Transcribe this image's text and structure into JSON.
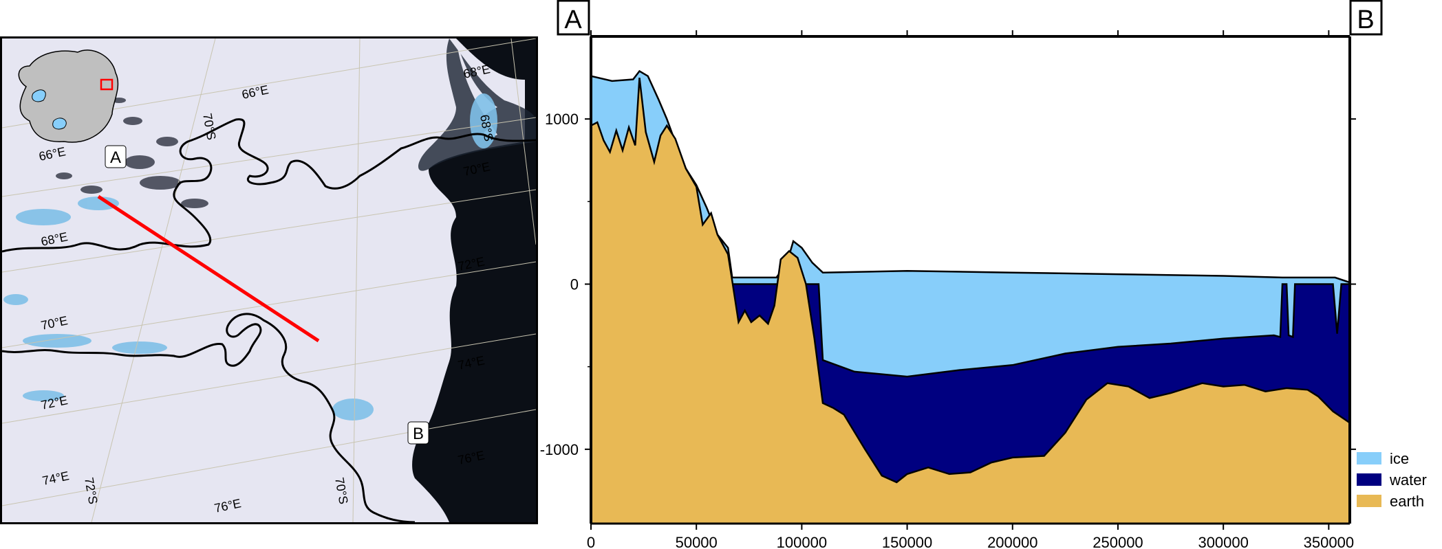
{
  "chart_data": {
    "type": "area",
    "title": "",
    "xlabel": "",
    "ylabel": "",
    "xlim": [
      0,
      360000
    ],
    "ylim": [
      -1450,
      1500
    ],
    "x_ticks": [
      0,
      50000,
      100000,
      150000,
      200000,
      250000,
      300000,
      350000
    ],
    "x_tick_labels": [
      "0",
      "50000",
      "100000",
      "150000",
      "200000",
      "250000",
      "300000",
      "350000"
    ],
    "y_ticks": [
      1000,
      0,
      -1000
    ],
    "y_tick_labels": [
      "1000",
      "0",
      "-1000"
    ],
    "endpoint_labels": {
      "start": "A",
      "end": "B"
    },
    "legend": {
      "position": "bottom-right",
      "entries": [
        "ice",
        "water",
        "earth"
      ]
    },
    "colors": {
      "ice": "#87cefa",
      "water": "#000080",
      "earth": "#e8b955"
    },
    "series": [
      {
        "name": "ice",
        "values": [
          [
            0,
            1260
          ],
          [
            10000,
            1230
          ],
          [
            20000,
            1240
          ],
          [
            23000,
            1290
          ],
          [
            27000,
            1260
          ],
          [
            32000,
            1120
          ],
          [
            36000,
            1000
          ],
          [
            40000,
            860
          ],
          [
            45000,
            700
          ],
          [
            50000,
            600
          ],
          [
            55000,
            460
          ],
          [
            60000,
            300
          ],
          [
            65000,
            220
          ],
          [
            67000,
            40
          ],
          [
            72000,
            40
          ],
          [
            80000,
            40
          ],
          [
            88000,
            40
          ],
          [
            93000,
            130
          ],
          [
            96000,
            260
          ],
          [
            100000,
            220
          ],
          [
            105000,
            130
          ],
          [
            110000,
            70
          ],
          [
            150000,
            80
          ],
          [
            200000,
            70
          ],
          [
            250000,
            60
          ],
          [
            300000,
            50
          ],
          [
            328000,
            40
          ],
          [
            340000,
            40
          ],
          [
            353000,
            40
          ],
          [
            360000,
            10
          ]
        ]
      },
      {
        "name": "water",
        "values": [
          [
            0,
            0
          ],
          [
            108000,
            0
          ],
          [
            110000,
            -460
          ],
          [
            125000,
            -530
          ],
          [
            150000,
            -560
          ],
          [
            175000,
            -520
          ],
          [
            200000,
            -490
          ],
          [
            225000,
            -420
          ],
          [
            250000,
            -380
          ],
          [
            275000,
            -360
          ],
          [
            300000,
            -330
          ],
          [
            324000,
            -310
          ],
          [
            327000,
            -320
          ],
          [
            328000,
            0
          ],
          [
            330000,
            0
          ],
          [
            331000,
            -310
          ],
          [
            333000,
            -320
          ],
          [
            334000,
            0
          ],
          [
            352000,
            0
          ],
          [
            354000,
            -300
          ],
          [
            356000,
            0
          ],
          [
            360000,
            0
          ]
        ]
      },
      {
        "name": "earth",
        "values": [
          [
            0,
            960
          ],
          [
            3000,
            980
          ],
          [
            6000,
            870
          ],
          [
            9000,
            800
          ],
          [
            12000,
            930
          ],
          [
            15000,
            810
          ],
          [
            18000,
            950
          ],
          [
            21000,
            840
          ],
          [
            23000,
            1250
          ],
          [
            26000,
            920
          ],
          [
            30000,
            740
          ],
          [
            33000,
            900
          ],
          [
            36000,
            960
          ],
          [
            40000,
            880
          ],
          [
            45000,
            700
          ],
          [
            50000,
            590
          ],
          [
            53000,
            360
          ],
          [
            57000,
            430
          ],
          [
            60000,
            300
          ],
          [
            65000,
            180
          ],
          [
            67000,
            20
          ],
          [
            70000,
            -230
          ],
          [
            73000,
            -160
          ],
          [
            76000,
            -230
          ],
          [
            80000,
            -190
          ],
          [
            84000,
            -240
          ],
          [
            87000,
            -130
          ],
          [
            90000,
            150
          ],
          [
            94000,
            200
          ],
          [
            98000,
            160
          ],
          [
            102000,
            0
          ],
          [
            106000,
            -330
          ],
          [
            110000,
            -720
          ],
          [
            115000,
            -750
          ],
          [
            120000,
            -790
          ],
          [
            130000,
            -1000
          ],
          [
            138000,
            -1160
          ],
          [
            145000,
            -1200
          ],
          [
            150000,
            -1150
          ],
          [
            160000,
            -1110
          ],
          [
            170000,
            -1150
          ],
          [
            180000,
            -1140
          ],
          [
            190000,
            -1080
          ],
          [
            200000,
            -1050
          ],
          [
            215000,
            -1040
          ],
          [
            225000,
            -900
          ],
          [
            235000,
            -700
          ],
          [
            245000,
            -600
          ],
          [
            255000,
            -620
          ],
          [
            265000,
            -690
          ],
          [
            275000,
            -660
          ],
          [
            290000,
            -600
          ],
          [
            300000,
            -620
          ],
          [
            310000,
            -610
          ],
          [
            320000,
            -650
          ],
          [
            330000,
            -630
          ],
          [
            340000,
            -640
          ],
          [
            345000,
            -680
          ],
          [
            352000,
            -770
          ],
          [
            360000,
            -840
          ]
        ]
      }
    ]
  },
  "map": {
    "point_labels": {
      "start": "A",
      "end": "B"
    },
    "graticule_labels": [
      "66°E",
      "68°E",
      "70°E",
      "72°E",
      "74°E",
      "76°E",
      "68°S",
      "70°S",
      "72°S"
    ],
    "colors": {
      "profile_line": "#ff0000",
      "inset_box": "#ff0000",
      "ocean": "#0b0f16",
      "ice_sheet": "#e8e8f4",
      "blue_ice": "#7fc0e8",
      "rock": "#404450"
    }
  }
}
